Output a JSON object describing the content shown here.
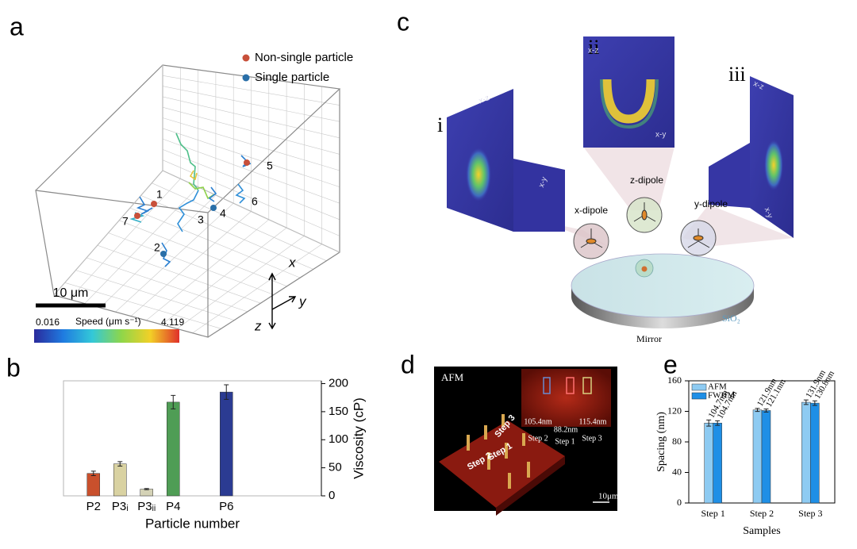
{
  "panel_labels": {
    "a": "a",
    "b": "b",
    "c": "c",
    "d": "d",
    "e": "e"
  },
  "panel_a": {
    "legend": [
      "Non-single particle",
      "Single particle"
    ],
    "particle_labels": [
      "1",
      "2",
      "3",
      "4",
      "5",
      "6",
      "7"
    ],
    "scale_bar": "10 μm",
    "axes": [
      "x",
      "y",
      "z"
    ],
    "colorbar": {
      "min": "0.016",
      "title": "Speed (μm s⁻¹)",
      "max": "4.119"
    }
  },
  "panel_c": {
    "views": [
      "i",
      "ii",
      "iii"
    ],
    "planes": [
      "x-z",
      "x-y",
      "x-z",
      "x-y",
      "x-z",
      "x-y"
    ],
    "dipoles": [
      "x-dipole",
      "z-dipole",
      "y-dipole"
    ],
    "substrate": "SiO₂",
    "mirror": "Mirror"
  },
  "panel_d": {
    "image_label": "AFM",
    "spacings": [
      "105.4nm",
      "88.2nm",
      "115.4nm"
    ],
    "inset_steps": [
      "Step 2",
      "Step 1",
      "Step 3"
    ],
    "surface_steps": [
      "Step 2",
      "Step 1",
      "Step 3"
    ],
    "scale_bar": "10μm"
  },
  "chart_data": [
    {
      "type": "bar",
      "categories": [
        "P2",
        "P3ᵢ",
        "P3ᵢᵢ",
        "P4",
        null,
        "P6"
      ],
      "values": [
        40,
        57,
        12,
        167,
        null,
        185
      ],
      "error": [
        4,
        4,
        1,
        12,
        null,
        13
      ],
      "colors": [
        "#c9502c",
        "#d9d2a2",
        "#d4d2b6",
        "#4f9d55",
        "#2b3b92",
        "#2b3b92"
      ],
      "x_label": "Particle number",
      "y_label": "Viscosity (cP)",
      "y_axis_position": "right",
      "ylim": [
        0,
        205
      ],
      "yticks": [
        0,
        50,
        100,
        150,
        200
      ]
    },
    {
      "type": "bar",
      "categories": [
        "Step 1",
        "Step 2",
        "Step 3"
      ],
      "series": [
        {
          "name": "AFM",
          "color": "#8ecbf2",
          "values": [
            104.7,
            121.9,
            131.9
          ],
          "error": [
            4,
            2,
            3
          ],
          "value_labels": [
            "104.7nm",
            "121.9nm",
            "131.9nm"
          ]
        },
        {
          "name": "FWHM",
          "color": "#1f8fe6",
          "values": [
            104.7,
            121.1,
            130.8
          ],
          "error": [
            3,
            2,
            3
          ],
          "value_labels": [
            "104.7nm",
            "121.1nm",
            "130.8nm"
          ]
        }
      ],
      "x_label": "Samples",
      "y_label": "Spacing (nm)",
      "y_axis_position": "left",
      "legend": "top-left",
      "ylim": [
        0,
        160
      ],
      "yticks": [
        0,
        40,
        80,
        120,
        160
      ]
    }
  ]
}
